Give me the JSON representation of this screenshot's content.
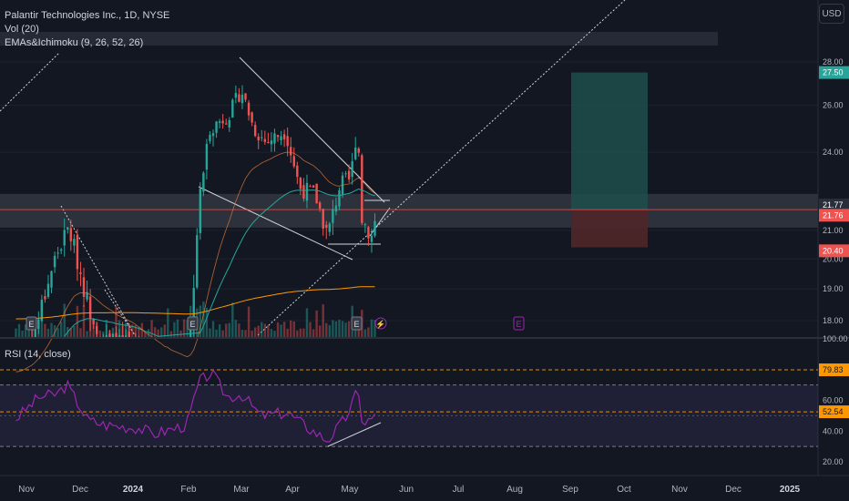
{
  "header": {
    "symbol_title": "Palantir Technologies Inc., 1D, NYSE",
    "vol_indicator": "Vol (20)",
    "ema_indicator": "EMAs&Ichimoku (9, 26, 52, 26)",
    "currency": "USD"
  },
  "rsi_panel": {
    "title": "RSI (14, close)"
  },
  "colors": {
    "background": "#131722",
    "up": "#26a69a",
    "down": "#ef5350",
    "rsi": "#9c27b0",
    "ema_orange": "#ff9800",
    "ema_teal": "#26a69a",
    "long_target": "#1f4f4c",
    "long_stop": "#4d2629"
  },
  "chart_data": [
    {
      "type": "candlestick",
      "title": "Palantir Technologies Inc., 1D, NYSE",
      "x_ticks": [
        "Nov",
        "Dec",
        "2024",
        "Feb",
        "Mar",
        "Apr",
        "May",
        "Jun",
        "Jul",
        "Aug",
        "Sep",
        "Oct",
        "Nov",
        "Dec",
        "2025"
      ],
      "y_ticks": [
        "28.00",
        "26.00",
        "24.00",
        "21.00",
        "20.00",
        "19.00",
        "18.00"
      ],
      "y_scale": "log",
      "ylim": [
        17.7,
        28.6
      ],
      "price_labels": [
        {
          "text": "27.50",
          "color": "#26a69a"
        },
        {
          "text": "21.77",
          "color": "#2a2e39"
        },
        {
          "text": "21.76",
          "color": "#ef5350"
        },
        {
          "text": "20.40",
          "color": "#ef5350"
        }
      ],
      "earnings_markers": [
        "E",
        "E",
        "E",
        "E"
      ],
      "long_position": {
        "target": 27.5,
        "entry": 21.76,
        "stop": 20.4
      },
      "shaded_zone": [
        21.1,
        22.35
      ],
      "approx_closes": [
        {
          "date": "2023-10-25",
          "close": 16.5
        },
        {
          "date": "2023-11-06",
          "close": 17.9
        },
        {
          "date": "2023-11-16",
          "close": 20.0
        },
        {
          "date": "2023-11-24",
          "close": 21.1
        },
        {
          "date": "2023-12-05",
          "close": 18.5
        },
        {
          "date": "2023-12-14",
          "close": 17.4
        },
        {
          "date": "2023-12-28",
          "close": 17.2
        },
        {
          "date": "2024-01-10",
          "close": 16.5
        },
        {
          "date": "2024-01-31",
          "close": 16.6
        },
        {
          "date": "2024-02-06",
          "close": 22.0
        },
        {
          "date": "2024-02-12",
          "close": 25.0
        },
        {
          "date": "2024-02-23",
          "close": 25.6
        },
        {
          "date": "2024-03-01",
          "close": 26.7
        },
        {
          "date": "2024-03-08",
          "close": 25.0
        },
        {
          "date": "2024-03-15",
          "close": 24.4
        },
        {
          "date": "2024-03-26",
          "close": 24.9
        },
        {
          "date": "2024-04-03",
          "close": 22.6
        },
        {
          "date": "2024-04-12",
          "close": 22.3
        },
        {
          "date": "2024-04-19",
          "close": 20.8
        },
        {
          "date": "2024-04-26",
          "close": 22.7
        },
        {
          "date": "2024-05-02",
          "close": 22.9
        },
        {
          "date": "2024-05-06",
          "close": 25.2
        },
        {
          "date": "2024-05-08",
          "close": 21.5
        },
        {
          "date": "2024-05-14",
          "close": 20.8
        },
        {
          "date": "2024-05-17",
          "close": 21.8
        }
      ]
    },
    {
      "type": "line",
      "title": "RSI (14, close)",
      "y_ticks": [
        "100.00",
        "60.00",
        "40.00",
        "20.00"
      ],
      "ylim": [
        10,
        100
      ],
      "levels": [
        {
          "text": "79.83",
          "value": 79.83
        },
        {
          "text": "52.54",
          "value": 52.54
        }
      ],
      "bands": [
        70,
        50,
        30
      ],
      "approx_values": [
        {
          "date": "2023-10-25",
          "value": 48
        },
        {
          "date": "2023-11-07",
          "value": 62
        },
        {
          "date": "2023-11-17",
          "value": 64
        },
        {
          "date": "2023-11-23",
          "value": 70
        },
        {
          "date": "2023-12-05",
          "value": 47
        },
        {
          "date": "2023-12-15",
          "value": 44
        },
        {
          "date": "2024-01-03",
          "value": 42
        },
        {
          "date": "2024-01-11",
          "value": 38
        },
        {
          "date": "2024-01-30",
          "value": 44
        },
        {
          "date": "2024-02-06",
          "value": 72
        },
        {
          "date": "2024-02-13",
          "value": 78
        },
        {
          "date": "2024-02-22",
          "value": 62
        },
        {
          "date": "2024-03-01",
          "value": 64
        },
        {
          "date": "2024-03-12",
          "value": 50
        },
        {
          "date": "2024-03-27",
          "value": 52
        },
        {
          "date": "2024-04-08",
          "value": 42
        },
        {
          "date": "2024-04-19",
          "value": 34
        },
        {
          "date": "2024-04-29",
          "value": 48
        },
        {
          "date": "2024-05-06",
          "value": 66
        },
        {
          "date": "2024-05-09",
          "value": 45
        },
        {
          "date": "2024-05-17",
          "value": 50
        }
      ]
    }
  ]
}
